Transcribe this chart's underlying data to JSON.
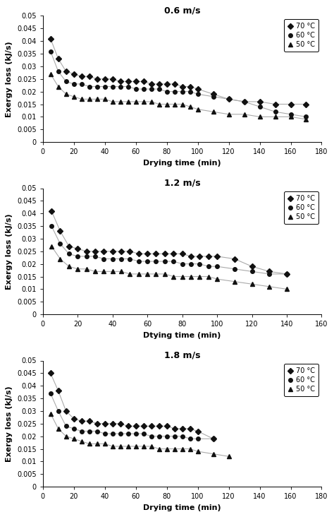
{
  "subplots": [
    {
      "title": "0.6 m/s",
      "xlabel": "Drying time (min)",
      "ylabel": "Exergy loss (kJ/s)",
      "xlim": [
        0,
        180
      ],
      "ylim": [
        0,
        0.05
      ],
      "yticks": [
        0,
        0.005,
        0.01,
        0.015,
        0.02,
        0.025,
        0.03,
        0.035,
        0.04,
        0.045,
        0.05
      ],
      "xticks": [
        0,
        20,
        40,
        60,
        80,
        100,
        120,
        140,
        160,
        180
      ],
      "series": [
        {
          "label": "70 °C",
          "marker": "D",
          "x": [
            5,
            10,
            15,
            20,
            25,
            30,
            35,
            40,
            45,
            50,
            55,
            60,
            65,
            70,
            75,
            80,
            85,
            90,
            95,
            100,
            110,
            120,
            130,
            140,
            150,
            160,
            170
          ],
          "y": [
            0.041,
            0.033,
            0.028,
            0.027,
            0.026,
            0.026,
            0.025,
            0.025,
            0.025,
            0.024,
            0.024,
            0.024,
            0.024,
            0.023,
            0.023,
            0.023,
            0.023,
            0.022,
            0.022,
            0.021,
            0.019,
            0.017,
            0.016,
            0.016,
            0.015,
            0.015,
            0.015
          ]
        },
        {
          "label": "60 °C",
          "marker": "o",
          "x": [
            5,
            10,
            15,
            20,
            25,
            30,
            35,
            40,
            45,
            50,
            55,
            60,
            65,
            70,
            75,
            80,
            85,
            90,
            95,
            100,
            110,
            120,
            130,
            140,
            150,
            160,
            170
          ],
          "y": [
            0.036,
            0.028,
            0.024,
            0.023,
            0.023,
            0.022,
            0.022,
            0.022,
            0.022,
            0.022,
            0.022,
            0.021,
            0.021,
            0.021,
            0.021,
            0.02,
            0.02,
            0.02,
            0.02,
            0.019,
            0.018,
            0.017,
            0.016,
            0.014,
            0.012,
            0.011,
            0.01
          ]
        },
        {
          "label": "50 °C",
          "marker": "^",
          "x": [
            5,
            10,
            15,
            20,
            25,
            30,
            35,
            40,
            45,
            50,
            55,
            60,
            65,
            70,
            75,
            80,
            85,
            90,
            95,
            100,
            110,
            120,
            130,
            140,
            150,
            160,
            170
          ],
          "y": [
            0.027,
            0.022,
            0.019,
            0.018,
            0.017,
            0.017,
            0.017,
            0.017,
            0.016,
            0.016,
            0.016,
            0.016,
            0.016,
            0.016,
            0.015,
            0.015,
            0.015,
            0.015,
            0.014,
            0.013,
            0.012,
            0.011,
            0.011,
            0.01,
            0.01,
            0.01,
            0.009
          ]
        }
      ]
    },
    {
      "title": "1.2 m/s",
      "xlabel": "Dtying time (min)",
      "ylabel": "Exergy loss (kJ/s)",
      "xlim": [
        0,
        160
      ],
      "ylim": [
        0,
        0.05
      ],
      "yticks": [
        0,
        0.005,
        0.01,
        0.015,
        0.02,
        0.025,
        0.03,
        0.035,
        0.04,
        0.045,
        0.05
      ],
      "xticks": [
        0,
        20,
        40,
        60,
        80,
        100,
        120,
        140,
        160
      ],
      "series": [
        {
          "label": "70 °C",
          "marker": "D",
          "x": [
            5,
            10,
            15,
            20,
            25,
            30,
            35,
            40,
            45,
            50,
            55,
            60,
            65,
            70,
            75,
            80,
            85,
            90,
            95,
            100,
            110,
            120,
            130,
            140
          ],
          "y": [
            0.041,
            0.033,
            0.027,
            0.026,
            0.025,
            0.025,
            0.025,
            0.025,
            0.025,
            0.025,
            0.024,
            0.024,
            0.024,
            0.024,
            0.024,
            0.024,
            0.023,
            0.023,
            0.023,
            0.023,
            0.022,
            0.019,
            0.017,
            0.016
          ]
        },
        {
          "label": "60 °C",
          "marker": "o",
          "x": [
            5,
            10,
            15,
            20,
            25,
            30,
            35,
            40,
            45,
            50,
            55,
            60,
            65,
            70,
            75,
            80,
            85,
            90,
            95,
            100,
            110,
            120,
            130,
            140
          ],
          "y": [
            0.035,
            0.028,
            0.024,
            0.023,
            0.023,
            0.023,
            0.022,
            0.022,
            0.022,
            0.022,
            0.021,
            0.021,
            0.021,
            0.021,
            0.021,
            0.02,
            0.02,
            0.02,
            0.019,
            0.019,
            0.018,
            0.017,
            0.016,
            0.016
          ]
        },
        {
          "label": "50 °C",
          "marker": "^",
          "x": [
            5,
            10,
            15,
            20,
            25,
            30,
            35,
            40,
            45,
            50,
            55,
            60,
            65,
            70,
            75,
            80,
            85,
            90,
            95,
            100,
            110,
            120,
            130,
            140
          ],
          "y": [
            0.027,
            0.022,
            0.019,
            0.018,
            0.018,
            0.017,
            0.017,
            0.017,
            0.017,
            0.016,
            0.016,
            0.016,
            0.016,
            0.016,
            0.015,
            0.015,
            0.015,
            0.015,
            0.015,
            0.014,
            0.013,
            0.012,
            0.011,
            0.01
          ]
        }
      ]
    },
    {
      "title": "1.8 m/s",
      "xlabel": "Drying time (min)",
      "ylabel": "Exergy loss (kJ/s)",
      "xlim": [
        0,
        180
      ],
      "ylim": [
        0,
        0.05
      ],
      "yticks": [
        0,
        0.005,
        0.01,
        0.015,
        0.02,
        0.025,
        0.03,
        0.035,
        0.04,
        0.045,
        0.05
      ],
      "xticks": [
        0,
        20,
        40,
        60,
        80,
        100,
        120,
        140,
        160,
        180
      ],
      "series": [
        {
          "label": "70 °C",
          "marker": "D",
          "x": [
            5,
            10,
            15,
            20,
            25,
            30,
            35,
            40,
            45,
            50,
            55,
            60,
            65,
            70,
            75,
            80,
            85,
            90,
            95,
            100,
            110
          ],
          "y": [
            0.045,
            0.038,
            0.03,
            0.027,
            0.026,
            0.026,
            0.025,
            0.025,
            0.025,
            0.025,
            0.024,
            0.024,
            0.024,
            0.024,
            0.024,
            0.024,
            0.023,
            0.023,
            0.023,
            0.022,
            0.019
          ]
        },
        {
          "label": "60 °C",
          "marker": "o",
          "x": [
            5,
            10,
            15,
            20,
            25,
            30,
            35,
            40,
            45,
            50,
            55,
            60,
            65,
            70,
            75,
            80,
            85,
            90,
            95,
            100,
            110
          ],
          "y": [
            0.037,
            0.03,
            0.024,
            0.023,
            0.022,
            0.022,
            0.022,
            0.021,
            0.021,
            0.021,
            0.021,
            0.021,
            0.021,
            0.02,
            0.02,
            0.02,
            0.02,
            0.02,
            0.019,
            0.019,
            0.019
          ]
        },
        {
          "label": "50 °C",
          "marker": "^",
          "x": [
            5,
            10,
            15,
            20,
            25,
            30,
            35,
            40,
            45,
            50,
            55,
            60,
            65,
            70,
            75,
            80,
            85,
            90,
            95,
            100,
            110,
            120
          ],
          "y": [
            0.029,
            0.023,
            0.02,
            0.019,
            0.018,
            0.017,
            0.017,
            0.017,
            0.016,
            0.016,
            0.016,
            0.016,
            0.016,
            0.016,
            0.015,
            0.015,
            0.015,
            0.015,
            0.015,
            0.014,
            0.013,
            0.012
          ]
        }
      ]
    }
  ],
  "line_color": "#aaaaaa",
  "marker_color": "#111111",
  "marker_size": 4,
  "font_size": 8,
  "title_font_size": 9,
  "figsize": [
    4.74,
    7.32
  ],
  "dpi": 100
}
